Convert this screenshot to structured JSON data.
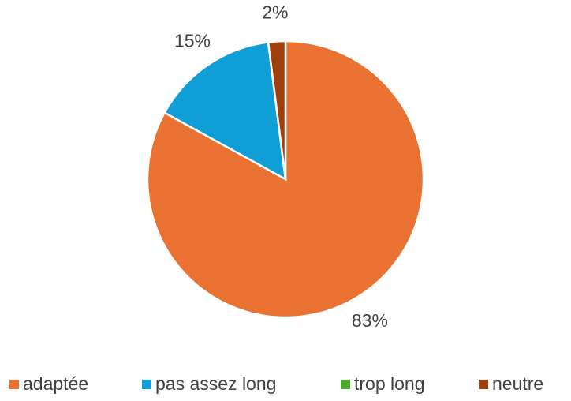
{
  "chart_data": {
    "type": "pie",
    "categories": [
      "adaptée",
      "pas assez long",
      "trop long",
      "neutre"
    ],
    "values": [
      83,
      15,
      0,
      2
    ],
    "value_labels": [
      "83%",
      "15%",
      null,
      "2%"
    ],
    "colors": [
      "#e97132",
      "#0f9ed5",
      "#4ea72e",
      "#a0410d"
    ],
    "legend": "bottom"
  }
}
